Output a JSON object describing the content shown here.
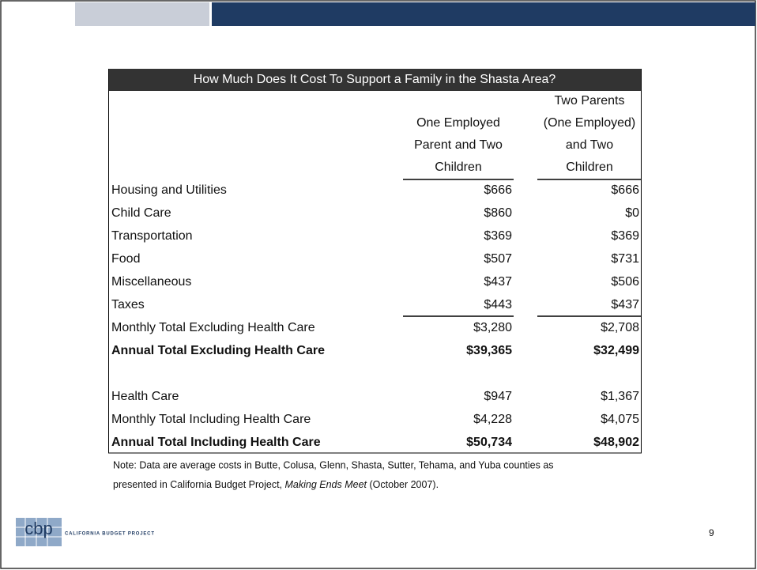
{
  "slide": {
    "table": {
      "title": "How Much Does It Cost To Support a Family in the Shasta Area?",
      "columns": [
        [
          "One Employed",
          "Parent and Two",
          "Children"
        ],
        [
          "Two Parents",
          "(One Employed)",
          "and Two",
          "Children"
        ]
      ],
      "sections": [
        {
          "rows": [
            {
              "label": "Housing and Utilities",
              "values": [
                "$666",
                "$666"
              ]
            },
            {
              "label": "Child Care",
              "values": [
                "$860",
                "$0"
              ]
            },
            {
              "label": "Transportation",
              "values": [
                "$369",
                "$369"
              ]
            },
            {
              "label": "Food",
              "values": [
                "$507",
                "$731"
              ]
            },
            {
              "label": "Miscellaneous",
              "values": [
                "$437",
                "$506"
              ]
            },
            {
              "label": "Taxes",
              "values": [
                "$443",
                "$437"
              ]
            },
            {
              "label": "Monthly Total Excluding Health Care",
              "values": [
                "$3,280",
                "$2,708"
              ]
            },
            {
              "label": "Annual Total Excluding Health Care",
              "values": [
                "$39,365",
                "$32,499"
              ],
              "bold": true
            }
          ]
        },
        {
          "rows": [
            {
              "label": "Health Care",
              "values": [
                "$947",
                "$1,367"
              ]
            },
            {
              "label": "Monthly Total Including Health Care",
              "values": [
                "$4,228",
                "$4,075"
              ]
            },
            {
              "label": "Annual Total Including Health Care",
              "values": [
                "$50,734",
                "$48,902"
              ],
              "bold": true
            }
          ]
        }
      ]
    },
    "note": {
      "line1": "Note: Data are average costs in Butte, Colusa, Glenn, Shasta, Sutter, Tehama, and Yuba counties as",
      "line2": "presented in California Budget Project, ",
      "italic": "Making Ends Meet",
      "line2_end": "  (October 2007)."
    },
    "logo": {
      "mark": "cbp",
      "name": "CALIFORNIA BUDGET PROJECT"
    },
    "page_number": "9"
  }
}
